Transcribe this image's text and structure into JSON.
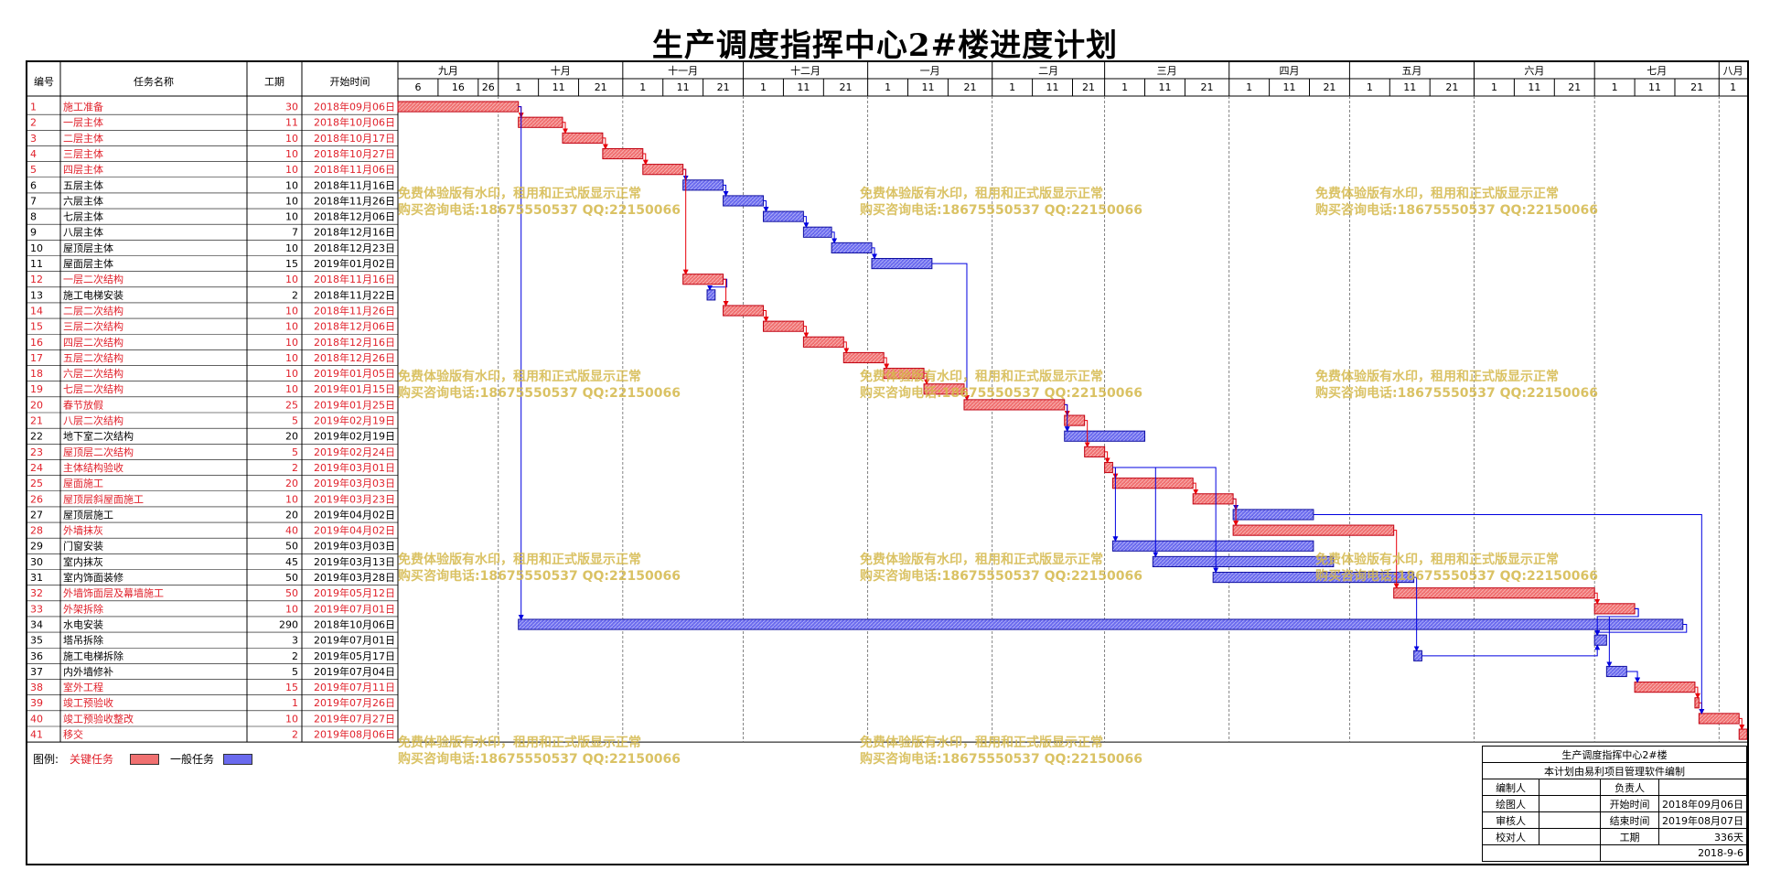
{
  "title": "生产调度指挥中心2#楼进度计划",
  "headers": {
    "id": "编号",
    "name": "任务名称",
    "dur": "工期",
    "start": "开始时间"
  },
  "months": [
    "九月",
    "十月",
    "十一月",
    "十二月",
    "一月",
    "二月",
    "三月",
    "四月",
    "五月",
    "六月",
    "七月",
    "八月"
  ],
  "day_ticks": [
    [
      "6",
      "16",
      "26"
    ],
    [
      "1",
      "11",
      "21"
    ],
    [
      "1",
      "11",
      "21"
    ],
    [
      "1",
      "11",
      "21"
    ],
    [
      "1",
      "11",
      "21"
    ],
    [
      "1",
      "11",
      "21"
    ],
    [
      "1",
      "11",
      "21"
    ],
    [
      "1",
      "11",
      "21"
    ],
    [
      "1",
      "11",
      "21"
    ],
    [
      "1",
      "11",
      "21"
    ],
    [
      "1",
      "11",
      "21"
    ],
    [
      "1"
    ]
  ],
  "colors": {
    "critical": "#f07070",
    "normal": "#6a6aee",
    "critical_text": "#e0202a",
    "link_critical": "#e8000a",
    "link_normal": "#0000e0"
  },
  "chart_data": {
    "type": "gantt",
    "title": "生产调度指挥中心2#楼进度计划",
    "time_range": [
      "2018-09-06",
      "2019-08-07"
    ],
    "tasks": [
      {
        "id": "1",
        "name": "施工准备",
        "duration": 30,
        "start": "2018年09月06日",
        "critical": true,
        "bar_start": "2018-09-06"
      },
      {
        "id": "2",
        "name": "一层主体",
        "duration": 11,
        "start": "2018年10月06日",
        "critical": true,
        "bar_start": "2018-10-06"
      },
      {
        "id": "3",
        "name": "二层主体",
        "duration": 10,
        "start": "2018年10月17日",
        "critical": true,
        "bar_start": "2018-10-17"
      },
      {
        "id": "4",
        "name": "三层主体",
        "duration": 10,
        "start": "2018年10月27日",
        "critical": true,
        "bar_start": "2018-10-27"
      },
      {
        "id": "5",
        "name": "四层主体",
        "duration": 10,
        "start": "2018年11月06日",
        "critical": true,
        "bar_start": "2018-11-06"
      },
      {
        "id": "6",
        "name": "五层主体",
        "duration": 10,
        "start": "2018年11月16日",
        "critical": false,
        "bar_start": "2018-11-16"
      },
      {
        "id": "7",
        "name": "六层主体",
        "duration": 10,
        "start": "2018年11月26日",
        "critical": false,
        "bar_start": "2018-11-26"
      },
      {
        "id": "8",
        "name": "七层主体",
        "duration": 10,
        "start": "2018年12月06日",
        "critical": false,
        "bar_start": "2018-12-06"
      },
      {
        "id": "9",
        "name": "八层主体",
        "duration": 7,
        "start": "2018年12月16日",
        "critical": false,
        "bar_start": "2018-12-16"
      },
      {
        "id": "10",
        "name": "屋顶层主体",
        "duration": 10,
        "start": "2018年12月23日",
        "critical": false,
        "bar_start": "2018-12-23"
      },
      {
        "id": "11",
        "name": "屋面层主体",
        "duration": 15,
        "start": "2019年01月02日",
        "critical": false,
        "bar_start": "2019-01-02"
      },
      {
        "id": "12",
        "name": "一层二次结构",
        "duration": 10,
        "start": "2018年11月16日",
        "critical": true,
        "bar_start": "2018-11-16"
      },
      {
        "id": "13",
        "name": "施工电梯安装",
        "duration": 2,
        "start": "2018年11月22日",
        "critical": false,
        "bar_start": "2018-11-22"
      },
      {
        "id": "14",
        "name": "二层二次结构",
        "duration": 10,
        "start": "2018年11月26日",
        "critical": true,
        "bar_start": "2018-11-26"
      },
      {
        "id": "15",
        "name": "三层二次结构",
        "duration": 10,
        "start": "2018年12月06日",
        "critical": true,
        "bar_start": "2018-12-06"
      },
      {
        "id": "16",
        "name": "四层二次结构",
        "duration": 10,
        "start": "2018年12月16日",
        "critical": true,
        "bar_start": "2018-12-16"
      },
      {
        "id": "17",
        "name": "五层二次结构",
        "duration": 10,
        "start": "2018年12月26日",
        "critical": true,
        "bar_start": "2018-12-26"
      },
      {
        "id": "18",
        "name": "六层二次结构",
        "duration": 10,
        "start": "2019年01月05日",
        "critical": true,
        "bar_start": "2019-01-05"
      },
      {
        "id": "19",
        "name": "七层二次结构",
        "duration": 10,
        "start": "2019年01月15日",
        "critical": true,
        "bar_start": "2019-01-15"
      },
      {
        "id": "20",
        "name": "春节放假",
        "duration": 25,
        "start": "2019年01月25日",
        "critical": true,
        "bar_start": "2019-01-25"
      },
      {
        "id": "21",
        "name": "八层二次结构",
        "duration": 5,
        "start": "2019年02月19日",
        "critical": true,
        "bar_start": "2019-02-19"
      },
      {
        "id": "22",
        "name": "地下室二次结构",
        "duration": 20,
        "start": "2019年02月19日",
        "critical": false,
        "bar_start": "2019-02-19"
      },
      {
        "id": "23",
        "name": "屋顶层二次结构",
        "duration": 5,
        "start": "2019年02月24日",
        "critical": true,
        "bar_start": "2019-02-24"
      },
      {
        "id": "24",
        "name": "主体结构验收",
        "duration": 2,
        "start": "2019年03月01日",
        "critical": true,
        "bar_start": "2019-03-01"
      },
      {
        "id": "25",
        "name": "屋面施工",
        "duration": 20,
        "start": "2019年03月03日",
        "critical": true,
        "bar_start": "2019-03-03"
      },
      {
        "id": "26",
        "name": "屋顶层斜屋面施工",
        "duration": 10,
        "start": "2019年03月23日",
        "critical": true,
        "bar_start": "2019-03-23"
      },
      {
        "id": "27",
        "name": "屋顶层施工",
        "duration": 20,
        "start": "2019年04月02日",
        "critical": false,
        "bar_start": "2019-04-02"
      },
      {
        "id": "28",
        "name": "外墙抹灰",
        "duration": 40,
        "start": "2019年04月02日",
        "critical": true,
        "bar_start": "2019-04-02"
      },
      {
        "id": "29",
        "name": "门窗安装",
        "duration": 50,
        "start": "2019年03月03日",
        "critical": false,
        "bar_start": "2019-03-03"
      },
      {
        "id": "30",
        "name": "室内抹灰",
        "duration": 45,
        "start": "2019年03月13日",
        "critical": false,
        "bar_start": "2019-03-13"
      },
      {
        "id": "31",
        "name": "室内饰面装修",
        "duration": 50,
        "start": "2019年03月28日",
        "critical": false,
        "bar_start": "2019-03-28"
      },
      {
        "id": "32",
        "name": "外墙饰面层及幕墙施工",
        "duration": 50,
        "start": "2019年05月12日",
        "critical": true,
        "bar_start": "2019-05-12"
      },
      {
        "id": "33",
        "name": "外架拆除",
        "duration": 10,
        "start": "2019年07月01日",
        "critical": true,
        "bar_start": "2019-07-01"
      },
      {
        "id": "34",
        "name": "水电安装",
        "duration": 290,
        "start": "2018年10月06日",
        "critical": false,
        "bar_start": "2018-10-06"
      },
      {
        "id": "35",
        "name": "塔吊拆除",
        "duration": 3,
        "start": "2019年07月01日",
        "critical": false,
        "bar_start": "2019-07-01"
      },
      {
        "id": "36",
        "name": "施工电梯拆除",
        "duration": 2,
        "start": "2019年05月17日",
        "critical": false,
        "bar_start": "2019-05-17"
      },
      {
        "id": "37",
        "name": "内外墙修补",
        "duration": 5,
        "start": "2019年07月04日",
        "critical": false,
        "bar_start": "2019-07-04"
      },
      {
        "id": "38",
        "name": "室外工程",
        "duration": 15,
        "start": "2019年07月11日",
        "critical": true,
        "bar_start": "2019-07-11"
      },
      {
        "id": "39",
        "name": "竣工预验收",
        "duration": 1,
        "start": "2019年07月26日",
        "critical": true,
        "bar_start": "2019-07-26"
      },
      {
        "id": "40",
        "name": "竣工预验收整改",
        "duration": 10,
        "start": "2019年07月27日",
        "critical": true,
        "bar_start": "2019-07-27"
      },
      {
        "id": "41",
        "name": "移交",
        "duration": 2,
        "start": "2019年08月06日",
        "critical": true,
        "bar_start": "2019-08-06"
      }
    ],
    "links": [
      [
        "1",
        "2"
      ],
      [
        "1",
        "34"
      ],
      [
        "2",
        "3"
      ],
      [
        "3",
        "4"
      ],
      [
        "4",
        "5"
      ],
      [
        "5",
        "6"
      ],
      [
        "5",
        "12"
      ],
      [
        "6",
        "7"
      ],
      [
        "7",
        "8"
      ],
      [
        "8",
        "9"
      ],
      [
        "9",
        "10"
      ],
      [
        "10",
        "11"
      ],
      [
        "11",
        "20"
      ],
      [
        "12",
        "13"
      ],
      [
        "12",
        "14"
      ],
      [
        "14",
        "15"
      ],
      [
        "15",
        "16"
      ],
      [
        "16",
        "17"
      ],
      [
        "17",
        "18"
      ],
      [
        "18",
        "19"
      ],
      [
        "19",
        "20"
      ],
      [
        "20",
        "21"
      ],
      [
        "20",
        "22"
      ],
      [
        "21",
        "23"
      ],
      [
        "23",
        "24"
      ],
      [
        "24",
        "25"
      ],
      [
        "24",
        "29"
      ],
      [
        "24",
        "30"
      ],
      [
        "24",
        "31"
      ],
      [
        "25",
        "26"
      ],
      [
        "26",
        "27"
      ],
      [
        "26",
        "28"
      ],
      [
        "28",
        "32"
      ],
      [
        "32",
        "33"
      ],
      [
        "33",
        "35"
      ],
      [
        "33",
        "37"
      ],
      [
        "31",
        "36"
      ],
      [
        "36",
        "35"
      ],
      [
        "37",
        "38"
      ],
      [
        "38",
        "39"
      ],
      [
        "39",
        "40"
      ],
      [
        "40",
        "41"
      ],
      [
        "27",
        "40"
      ],
      [
        "34",
        "35"
      ]
    ]
  },
  "watermark": {
    "line1": "免费体验版有水印，租用和正式版显示正常",
    "line2": "购买咨询电话:18675550537 QQ:22150066"
  },
  "legend": {
    "prefix": "图例:",
    "critical": "关键任务",
    "normal": "一般任务"
  },
  "sign_box": {
    "project": "生产调度指挥中心2#楼",
    "note": "本计划由易利项目管理软件编制",
    "rows": [
      [
        "编制人",
        "",
        "负责人",
        ""
      ],
      [
        "绘图人",
        "",
        "开始时间",
        "2018年09月06日"
      ],
      [
        "审核人",
        "",
        "结束时间",
        "2019年08月07日"
      ],
      [
        "校对人",
        "",
        "工期",
        "336天"
      ]
    ],
    "date": "2018-9-6"
  }
}
